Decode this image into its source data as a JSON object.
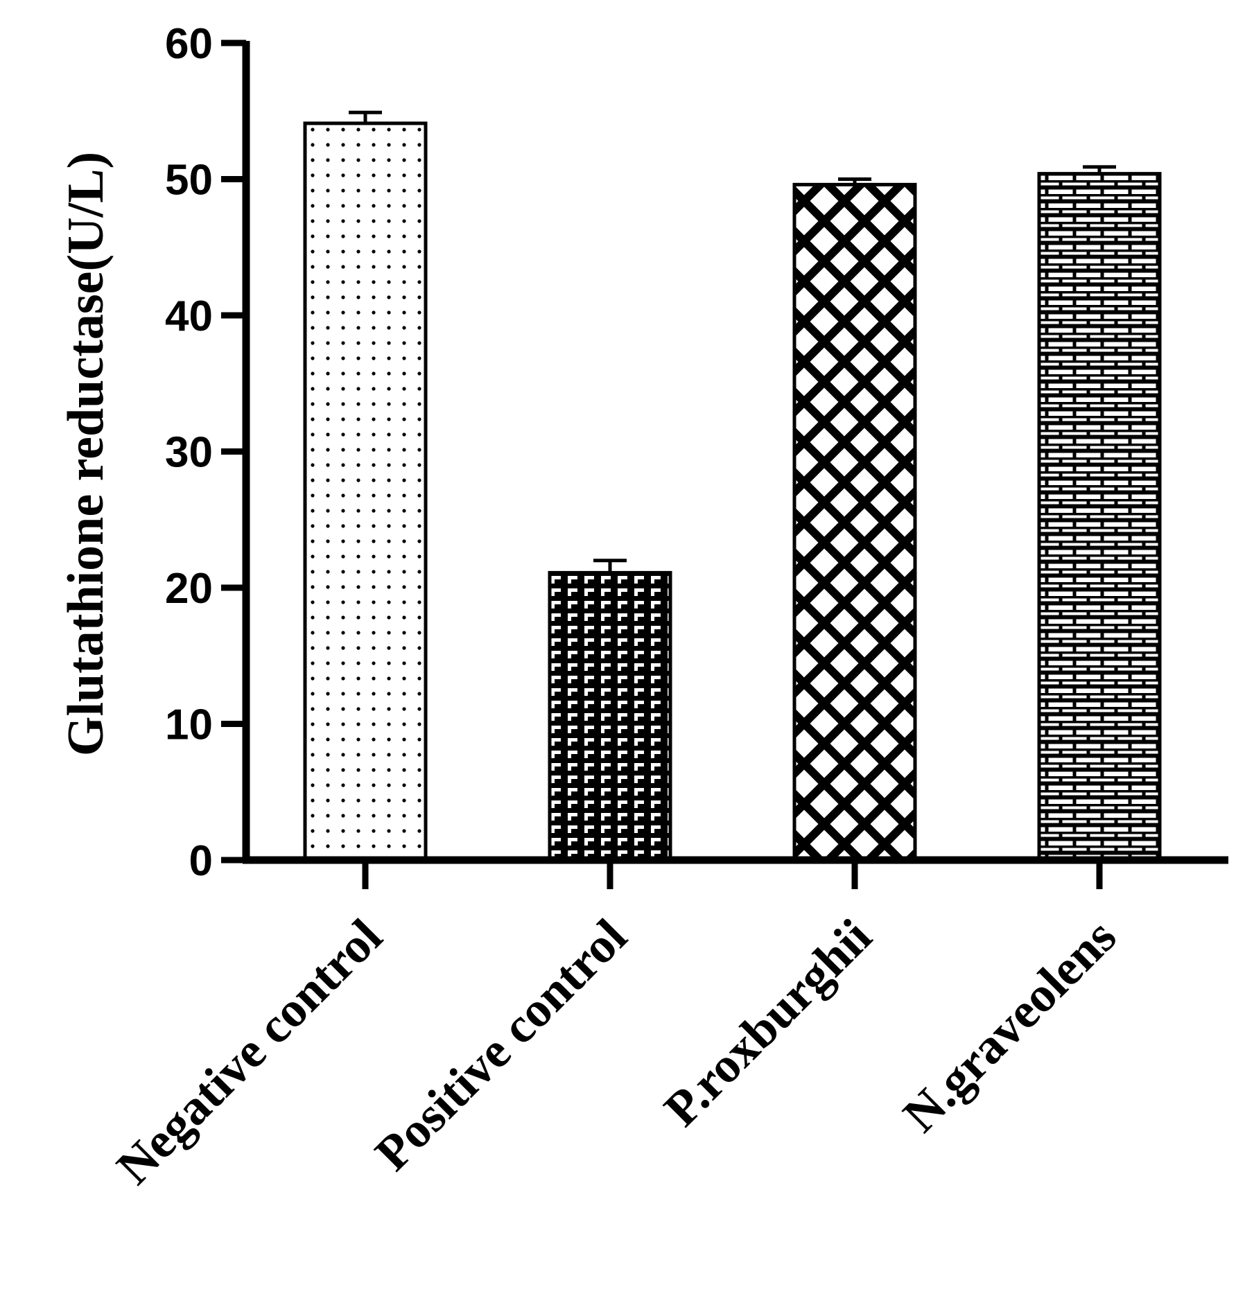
{
  "chart_data": {
    "type": "bar",
    "title": "",
    "xlabel": "",
    "ylabel": "Glutathione reductase(U/L)",
    "ylim": [
      0,
      60
    ],
    "yticks": [
      0,
      10,
      20,
      30,
      40,
      50,
      60
    ],
    "categories": [
      "Negative control",
      "Positive control",
      "P.roxburghii",
      "N.graveolens"
    ],
    "values": [
      54.1,
      21.1,
      49.6,
      50.4
    ],
    "errors": [
      0.8,
      0.9,
      0.4,
      0.5
    ],
    "patterns": [
      "dots",
      "brick-dark",
      "crosshatch",
      "brick"
    ],
    "grid": false,
    "colors": {
      "fill": "#ffffff",
      "stroke": "#000000"
    }
  }
}
